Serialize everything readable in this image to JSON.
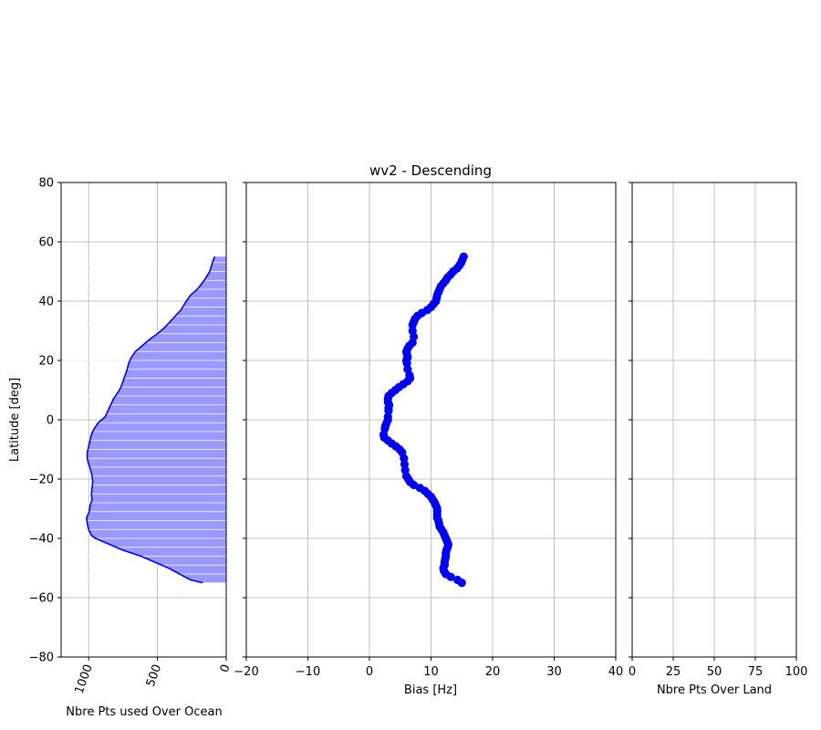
{
  "chart_data": [
    {
      "type": "area",
      "xlabel": "Nbre Pts used Over Ocean",
      "ylabel": "Latitude [deg]",
      "xlim": [
        1200,
        0
      ],
      "ylim": [
        -80,
        80
      ],
      "xticks": [
        "1000",
        "500",
        "0"
      ],
      "yticks": [
        "80",
        "60",
        "40",
        "20",
        "0",
        "−20",
        "−40",
        "−60",
        "−80"
      ],
      "grid": true,
      "series": [
        {
          "color": "#0000ff",
          "fill": "#9999ff",
          "points": [
            [
              85,
              55
            ],
            [
              100,
              53
            ],
            [
              120,
              50
            ],
            [
              160,
              47
            ],
            [
              210,
              44
            ],
            [
              260,
              42
            ],
            [
              290,
              40
            ],
            [
              330,
              37
            ],
            [
              370,
              35
            ],
            [
              410,
              33
            ],
            [
              450,
              31
            ],
            [
              500,
              29
            ],
            [
              560,
              27
            ],
            [
              610,
              25
            ],
            [
              660,
              23
            ],
            [
              690,
              21
            ],
            [
              710,
              19
            ],
            [
              720,
              17
            ],
            [
              735,
              15
            ],
            [
              750,
              13
            ],
            [
              765,
              11
            ],
            [
              790,
              9
            ],
            [
              820,
              7
            ],
            [
              840,
              5
            ],
            [
              860,
              3
            ],
            [
              880,
              1
            ],
            [
              930,
              -1
            ],
            [
              960,
              -3
            ],
            [
              980,
              -5
            ],
            [
              990,
              -7
            ],
            [
              1000,
              -9
            ],
            [
              1010,
              -11
            ],
            [
              1010,
              -13
            ],
            [
              1000,
              -15
            ],
            [
              985,
              -17
            ],
            [
              975,
              -19
            ],
            [
              970,
              -21
            ],
            [
              975,
              -23
            ],
            [
              980,
              -25
            ],
            [
              975,
              -27
            ],
            [
              990,
              -29
            ],
            [
              995,
              -31
            ],
            [
              1015,
              -33
            ],
            [
              1010,
              -35
            ],
            [
              1000,
              -37
            ],
            [
              980,
              -39
            ],
            [
              950,
              -40
            ],
            [
              850,
              -42
            ],
            [
              750,
              -44
            ],
            [
              620,
              -46
            ],
            [
              520,
              -48
            ],
            [
              420,
              -50
            ],
            [
              340,
              -52
            ],
            [
              260,
              -54
            ],
            [
              170,
              -55
            ]
          ]
        }
      ]
    },
    {
      "type": "scatter",
      "title": "wv2 - Descending",
      "xlabel": "Bias [Hz]",
      "ylabel": "",
      "xlim": [
        -20,
        40
      ],
      "ylim": [
        -80,
        80
      ],
      "xticks": [
        "−20",
        "−10",
        "0",
        "10",
        "20",
        "30",
        "40"
      ],
      "grid": true,
      "series": [
        {
          "color": "#0000ff",
          "points": [
            [
              15.3,
              55
            ],
            [
              15.1,
              54
            ],
            [
              14.9,
              53
            ],
            [
              14.6,
              52
            ],
            [
              14.2,
              51
            ],
            [
              13.6,
              50
            ],
            [
              13.2,
              49
            ],
            [
              12.7,
              48
            ],
            [
              12.4,
              47
            ],
            [
              12.0,
              46
            ],
            [
              11.6,
              45
            ],
            [
              11.4,
              44
            ],
            [
              11.2,
              43
            ],
            [
              11.0,
              42
            ],
            [
              10.9,
              41
            ],
            [
              10.8,
              40
            ],
            [
              10.4,
              39
            ],
            [
              10.0,
              38
            ],
            [
              9.4,
              37
            ],
            [
              8.5,
              36
            ],
            [
              7.8,
              35
            ],
            [
              7.4,
              34
            ],
            [
              7.2,
              33
            ],
            [
              7.0,
              32
            ],
            [
              7.0,
              30
            ],
            [
              7.2,
              28
            ],
            [
              7.0,
              26
            ],
            [
              6.5,
              25
            ],
            [
              6.2,
              24
            ],
            [
              6.0,
              23
            ],
            [
              6.1,
              22
            ],
            [
              6.2,
              21
            ],
            [
              6.0,
              20
            ],
            [
              6.1,
              19
            ],
            [
              6.2,
              17
            ],
            [
              6.5,
              15
            ],
            [
              6.6,
              14
            ],
            [
              6.2,
              13
            ],
            [
              5.5,
              12
            ],
            [
              4.8,
              11
            ],
            [
              4.2,
              10
            ],
            [
              3.6,
              9
            ],
            [
              3.1,
              8
            ],
            [
              3.0,
              7
            ],
            [
              3.0,
              6
            ],
            [
              3.2,
              5
            ],
            [
              3.1,
              4
            ],
            [
              3.1,
              3
            ],
            [
              3.0,
              1
            ],
            [
              3.0,
              0
            ],
            [
              2.8,
              -1
            ],
            [
              2.6,
              -2
            ],
            [
              2.5,
              -3
            ],
            [
              2.3,
              -5
            ],
            [
              2.4,
              -6
            ],
            [
              3.0,
              -7
            ],
            [
              3.6,
              -8
            ],
            [
              4.3,
              -9
            ],
            [
              4.9,
              -10
            ],
            [
              5.3,
              -11
            ],
            [
              5.6,
              -13
            ],
            [
              5.7,
              -15
            ],
            [
              5.8,
              -17
            ],
            [
              6.0,
              -19
            ],
            [
              6.3,
              -20
            ],
            [
              6.6,
              -21
            ],
            [
              7.2,
              -22
            ],
            [
              8.2,
              -23
            ],
            [
              9.0,
              -24
            ],
            [
              9.5,
              -25
            ],
            [
              10.0,
              -26
            ],
            [
              10.3,
              -27
            ],
            [
              10.6,
              -28
            ],
            [
              10.8,
              -29
            ],
            [
              11.0,
              -30
            ],
            [
              11.0,
              -31
            ],
            [
              11.0,
              -32
            ],
            [
              11.0,
              -33
            ],
            [
              11.2,
              -34
            ],
            [
              11.3,
              -35
            ],
            [
              11.4,
              -36
            ],
            [
              11.7,
              -37
            ],
            [
              12.0,
              -38
            ],
            [
              12.2,
              -39
            ],
            [
              12.4,
              -40
            ],
            [
              12.6,
              -41
            ],
            [
              12.8,
              -42
            ],
            [
              12.7,
              -43
            ],
            [
              12.5,
              -44
            ],
            [
              12.4,
              -45
            ],
            [
              12.4,
              -46
            ],
            [
              12.3,
              -47
            ],
            [
              12.2,
              -48
            ],
            [
              12.2,
              -49
            ],
            [
              12.0,
              -50
            ],
            [
              12.1,
              -51
            ],
            [
              12.4,
              -52
            ],
            [
              13.2,
              -53
            ],
            [
              14.3,
              -54
            ],
            [
              15.0,
              -55
            ]
          ]
        }
      ]
    },
    {
      "type": "line",
      "xlabel": "Nbre Pts Over Land",
      "ylabel": "",
      "xlim": [
        0,
        100
      ],
      "ylim": [
        -80,
        80
      ],
      "xticks": [
        "0",
        "25",
        "50",
        "75",
        "100"
      ],
      "grid": true,
      "series": []
    }
  ]
}
